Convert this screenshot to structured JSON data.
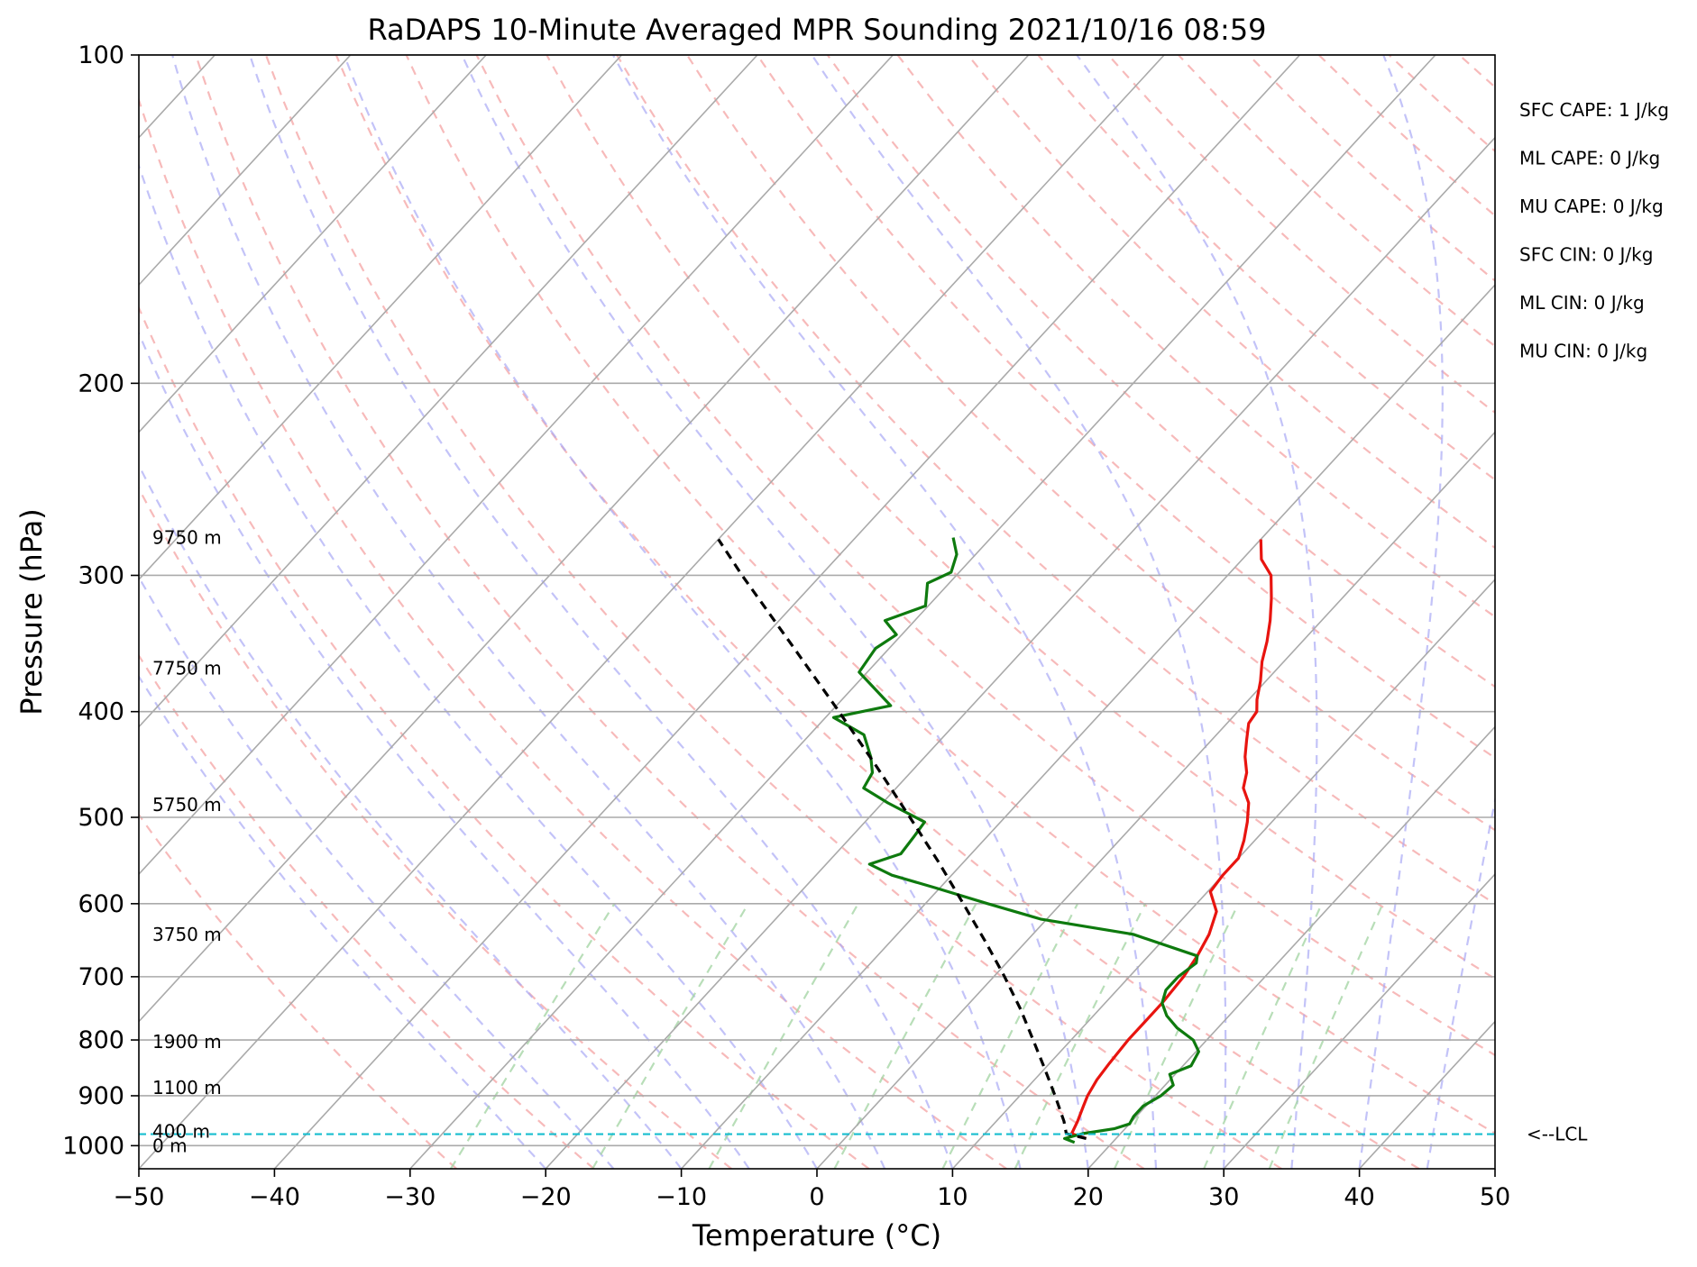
{
  "chart_data": {
    "type": "skew-t",
    "title": "RaDAPS 10-Minute Averaged MPR Sounding 2021/10/16 08:59",
    "xlabel": "Temperature (°C)",
    "ylabel": "Pressure (hPa)",
    "xlim": [
      -50,
      50
    ],
    "ylim": [
      1050,
      100
    ],
    "y_scale": "log",
    "grid": true,
    "x_ticks": [
      "−50",
      "−40",
      "−30",
      "−20",
      "−10",
      "0",
      "10",
      "20",
      "30",
      "40",
      "50"
    ],
    "x_tick_values": [
      -50,
      -40,
      -30,
      -20,
      -10,
      0,
      10,
      20,
      30,
      40,
      50
    ],
    "y_ticks": [
      "100",
      "200",
      "300",
      "400",
      "500",
      "600",
      "700",
      "800",
      "900",
      "1000"
    ],
    "y_tick_values": [
      100,
      200,
      300,
      400,
      500,
      600,
      700,
      800,
      900,
      1000
    ],
    "series": [
      {
        "role": "temperature",
        "color": "#e8140f",
        "points": [
          [
            985,
            17.8
          ],
          [
            975,
            16.4
          ],
          [
            950,
            16.0
          ],
          [
            920,
            15.4
          ],
          [
            900,
            15.0
          ],
          [
            870,
            14.6
          ],
          [
            840,
            14.4
          ],
          [
            800,
            14.2
          ],
          [
            770,
            14.2
          ],
          [
            740,
            14.2
          ],
          [
            700,
            14.0
          ],
          [
            670,
            13.6
          ],
          [
            640,
            13.0
          ],
          [
            610,
            12.0
          ],
          [
            585,
            10.2
          ],
          [
            565,
            10.0
          ],
          [
            545,
            10.0
          ],
          [
            525,
            9.2
          ],
          [
            505,
            8.2
          ],
          [
            485,
            7.0
          ],
          [
            470,
            5.6
          ],
          [
            455,
            4.8
          ],
          [
            440,
            3.6
          ],
          [
            425,
            2.6
          ],
          [
            410,
            1.6
          ],
          [
            400,
            1.4
          ],
          [
            390,
            0.6
          ],
          [
            375,
            -0.4
          ],
          [
            360,
            -1.6
          ],
          [
            345,
            -2.6
          ],
          [
            330,
            -3.8
          ],
          [
            315,
            -5.2
          ],
          [
            300,
            -6.8
          ],
          [
            290,
            -8.6
          ],
          [
            278,
            -10.0
          ]
        ]
      },
      {
        "role": "dewpoint",
        "color": "#0e7a0e",
        "points": [
          [
            993,
            17.2
          ],
          [
            985,
            16.2
          ],
          [
            975,
            17.2
          ],
          [
            965,
            19.2
          ],
          [
            955,
            20.0
          ],
          [
            940,
            19.8
          ],
          [
            920,
            19.8
          ],
          [
            900,
            20.4
          ],
          [
            880,
            20.6
          ],
          [
            860,
            19.6
          ],
          [
            845,
            20.6
          ],
          [
            820,
            20.2
          ],
          [
            800,
            19.0
          ],
          [
            780,
            17.0
          ],
          [
            760,
            15.4
          ],
          [
            740,
            14.2
          ],
          [
            720,
            13.6
          ],
          [
            700,
            13.6
          ],
          [
            680,
            14.0
          ],
          [
            670,
            13.6
          ],
          [
            640,
            7.4
          ],
          [
            620,
            -0.4
          ],
          [
            600,
            -5.4
          ],
          [
            580,
            -10.4
          ],
          [
            565,
            -14.4
          ],
          [
            552,
            -16.8
          ],
          [
            540,
            -15.2
          ],
          [
            520,
            -15.4
          ],
          [
            505,
            -15.6
          ],
          [
            485,
            -19.6
          ],
          [
            470,
            -22.4
          ],
          [
            455,
            -22.8
          ],
          [
            440,
            -24.0
          ],
          [
            420,
            -26.0
          ],
          [
            405,
            -29.4
          ],
          [
            395,
            -26.0
          ],
          [
            368,
            -30.6
          ],
          [
            350,
            -31.0
          ],
          [
            340,
            -30.4
          ],
          [
            330,
            -32.2
          ],
          [
            320,
            -30.2
          ],
          [
            305,
            -31.6
          ],
          [
            298,
            -30.6
          ],
          [
            287,
            -31.4
          ],
          [
            277,
            -32.8
          ]
        ]
      },
      {
        "role": "parcel",
        "color": "#000000",
        "points": [
          [
            985,
            17.8
          ],
          [
            975,
            16.0
          ],
          [
            950,
            15.0
          ],
          [
            900,
            12.6
          ],
          [
            850,
            10.0
          ],
          [
            800,
            7.2
          ],
          [
            750,
            4.2
          ],
          [
            700,
            0.8
          ],
          [
            650,
            -3.0
          ],
          [
            600,
            -7.2
          ],
          [
            550,
            -11.8
          ],
          [
            500,
            -17.0
          ],
          [
            450,
            -22.8
          ],
          [
            400,
            -29.4
          ],
          [
            350,
            -37.0
          ],
          [
            300,
            -45.8
          ],
          [
            278,
            -50.0
          ]
        ]
      }
    ],
    "lcl_pressure": 976,
    "lcl_label": "<--LCL",
    "height_labels": [
      {
        "text": "9750 m",
        "pressure": 277
      },
      {
        "text": "7750 m",
        "pressure": 365
      },
      {
        "text": "5750 m",
        "pressure": 487
      },
      {
        "text": "3750 m",
        "pressure": 640
      },
      {
        "text": "1900 m",
        "pressure": 803
      },
      {
        "text": "1100 m",
        "pressure": 885
      },
      {
        "text": "400 m",
        "pressure": 970
      },
      {
        "text": "0 m",
        "pressure": 1000
      }
    ],
    "indices": [
      {
        "text": "SFC CAPE: 1 J/kg"
      },
      {
        "text": "ML CAPE: 0 J/kg"
      },
      {
        "text": "MU CAPE: 0 J/kg"
      },
      {
        "text": "SFC CIN: 0 J/kg"
      },
      {
        "text": "ML CIN: 0 J/kg"
      },
      {
        "text": "MU CIN: 0 J/kg"
      }
    ]
  }
}
